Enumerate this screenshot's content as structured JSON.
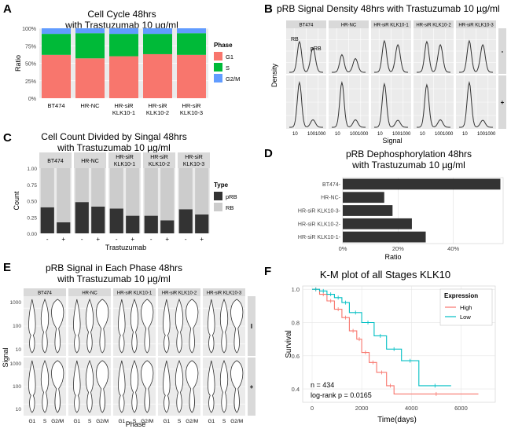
{
  "panels": {
    "A": {
      "letter": "A",
      "chart_data": {
        "type": "bar",
        "stacked": true,
        "title": "Cell Cycle 48hrs\nwith Trastuzumab 10 µg/ml",
        "ylabel": "Ratio",
        "xlabel": "",
        "categories": [
          "BT474",
          "HR-NC",
          "HR-siR\nKLK10-1",
          "HR-siR\nKLK10-2",
          "HR-siR\nKLK10-3"
        ],
        "series": [
          {
            "name": "G1",
            "color": "#F8766D",
            "values": [
              0.62,
              0.57,
              0.6,
              0.63,
              0.62
            ]
          },
          {
            "name": "S",
            "color": "#00BA38",
            "values": [
              0.3,
              0.36,
              0.32,
              0.29,
              0.31
            ]
          },
          {
            "name": "G2/M",
            "color": "#619CFF",
            "values": [
              0.08,
              0.07,
              0.08,
              0.08,
              0.07
            ]
          }
        ],
        "ylim": [
          0,
          1
        ],
        "yticks": [
          "0%",
          "25%",
          "50%",
          "75%",
          "100%"
        ],
        "legend_title": "Phase",
        "legend_position": "right"
      }
    },
    "B": {
      "letter": "B",
      "chart_data": {
        "type": "line",
        "title": "pRB Signal Density 48hrs with Trastuzumab 10 µg/ml",
        "xlabel": "Signal",
        "ylabel": "Density",
        "columns": [
          "BT474",
          "HR-NC",
          "HR-siR KLK10-1",
          "HR-siR KLK10-2",
          "HR-siR KLK10-3"
        ],
        "rows": [
          "-",
          "+"
        ],
        "xticks": [
          "10",
          "1001000"
        ],
        "peak_labels": [
          "RB",
          "pRB"
        ],
        "series": [
          {
            "name": "row -",
            "peaks": [
              [
                0.78,
                0.62
              ],
              [
                0.45,
                0.35
              ],
              [
                0.8,
                0.7
              ],
              [
                0.78,
                0.7
              ],
              [
                0.8,
                0.7
              ]
            ]
          },
          {
            "name": "row +",
            "peaks": [
              [
                0.95,
                0.16
              ],
              [
                0.95,
                0.16
              ],
              [
                0.92,
                0.15
              ],
              [
                0.9,
                0.16
              ],
              [
                0.95,
                0.15
              ]
            ]
          }
        ]
      }
    },
    "C": {
      "letter": "C",
      "chart_data": {
        "type": "bar",
        "stacked": true,
        "title": "Cell Count Divided by Singal 48hrs\nwith Trastuzumab 10 µg/ml",
        "xlabel": "Trastuzumab",
        "ylabel": "Count",
        "facets": [
          "BT474",
          "HR-NC",
          "HR-siR\nKLK10-1",
          "HR-siR\nKLK10-2",
          "HR-siR\nKLK10-3"
        ],
        "categories": [
          "-",
          "+"
        ],
        "series": [
          {
            "name": "pRB",
            "color": "#333333",
            "values": [
              [
                0.4,
                0.17
              ],
              [
                0.48,
                0.41
              ],
              [
                0.38,
                0.27
              ],
              [
                0.27,
                0.2
              ],
              [
                0.37,
                0.29
              ]
            ]
          },
          {
            "name": "RB",
            "color": "#cccccc",
            "values": [
              [
                0.6,
                0.83
              ],
              [
                0.52,
                0.59
              ],
              [
                0.62,
                0.73
              ],
              [
                0.73,
                0.8
              ],
              [
                0.63,
                0.71
              ]
            ]
          }
        ],
        "ylim": [
          0,
          1
        ],
        "yticks": [
          "0.00",
          "0.25",
          "0.50",
          "0.75",
          "1.00"
        ],
        "legend_title": "Type",
        "legend_position": "right"
      }
    },
    "D": {
      "letter": "D",
      "chart_data": {
        "type": "bar",
        "orientation": "horizontal",
        "title": "pRB Dephosphorylation 48hrs\nwith Trastuzumab 10 µg/ml",
        "xlabel": "Ratio",
        "ylabel": "",
        "categories": [
          "BT474",
          "HR-NC",
          "HR-siR KLK10-3",
          "HR-siR KLK10-2",
          "HR-siR KLK10-1"
        ],
        "values": [
          0.57,
          0.15,
          0.18,
          0.25,
          0.3
        ],
        "xlim": [
          0,
          0.58
        ],
        "xticks": [
          {
            "v": 0,
            "label": "0%"
          },
          {
            "v": 0.2,
            "label": "20%"
          },
          {
            "v": 0.4,
            "label": "40%"
          }
        ]
      }
    },
    "E": {
      "letter": "E",
      "chart_data": {
        "type": "violin",
        "title": "pRB Signal in Each Phase 48hrs\nwith Trastuzumab 10 µg/ml",
        "xlabel": "Phase",
        "ylabel": "Signal",
        "columns": [
          "BT474",
          "HR-NC",
          "HR-siR KLK10-1",
          "HR-siR KLK10-2",
          "HR-siR KLK10-3"
        ],
        "rows": [
          "I",
          "+"
        ],
        "categories": [
          "G1",
          "S",
          "G2/M"
        ],
        "yticks": [
          "1000",
          "100",
          "10"
        ],
        "bulges": {
          "G1": [
            140,
            40
          ],
          "S": [
            380,
            90
          ],
          "G2/M": [
            650,
            450
          ]
        }
      }
    },
    "F": {
      "letter": "F",
      "chart_data": {
        "type": "line",
        "title": "K-M plot of all Stages KLK10",
        "xlabel": "Time(days)",
        "ylabel": "Survival",
        "xlim": [
          0,
          7000
        ],
        "ylim": [
          0.32,
          1.02
        ],
        "xticks": [
          0,
          2000,
          4000,
          6000
        ],
        "yticks": [
          0.4,
          0.6,
          0.8,
          1.0
        ],
        "annotations": [
          "n = 434",
          "log-rank p = 0.0165"
        ],
        "legend_title": "Expression",
        "legend_position": "top-right",
        "series": [
          {
            "name": "High",
            "color": "#F8766D",
            "x": [
              0,
              300,
              600,
              900,
              1200,
              1500,
              1800,
              2000,
              2300,
              2600,
              3000,
              3300,
              6700
            ],
            "y": [
              1.0,
              0.97,
              0.93,
              0.88,
              0.83,
              0.75,
              0.7,
              0.62,
              0.56,
              0.5,
              0.42,
              0.37,
              0.37
            ]
          },
          {
            "name": "Low",
            "color": "#00BFC4",
            "x": [
              0,
              300,
              600,
              900,
              1200,
              1500,
              2000,
              2500,
              3000,
              3600,
              4300,
              5600
            ],
            "y": [
              1.0,
              0.99,
              0.97,
              0.95,
              0.92,
              0.86,
              0.8,
              0.72,
              0.64,
              0.57,
              0.42,
              0.42
            ]
          }
        ]
      }
    }
  }
}
